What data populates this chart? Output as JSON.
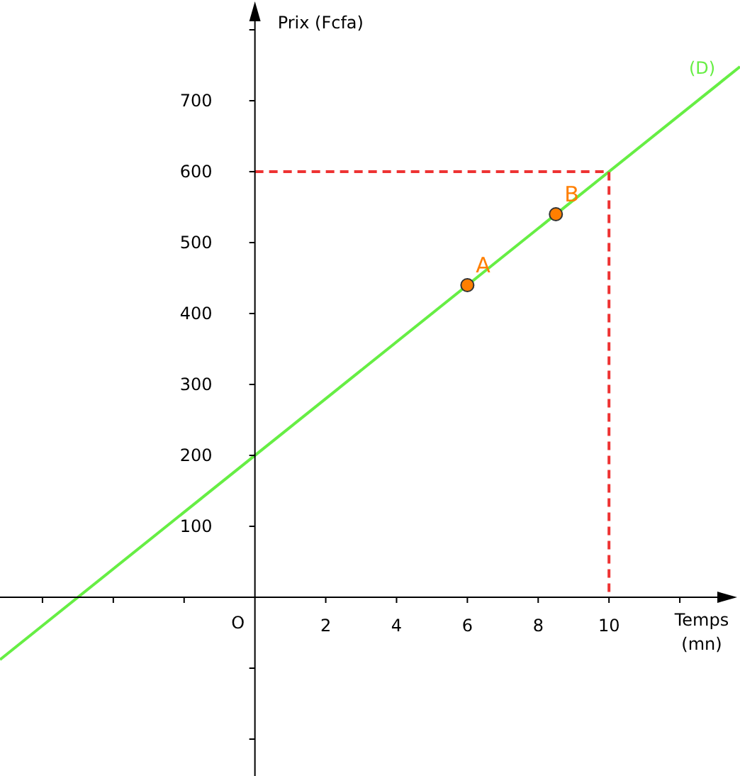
{
  "chart_data": {
    "type": "line",
    "xlabel": "Temps (mn)",
    "ylabel": "Prix (Fcfa)",
    "xlim": [
      -7.2,
      13.7
    ],
    "ylim": [
      -252,
      842
    ],
    "xticks": [
      {
        "value": -6,
        "label": null
      },
      {
        "value": -4,
        "label": null
      },
      {
        "value": -2,
        "label": null
      },
      2,
      4,
      6,
      8,
      10,
      {
        "value": 12,
        "label": null
      }
    ],
    "yticks": [
      {
        "value": -200,
        "label": null
      },
      {
        "value": -100,
        "label": null
      },
      100,
      200,
      300,
      400,
      500,
      600,
      700,
      {
        "value": 800,
        "label": null
      }
    ],
    "annotations": [
      "O"
    ],
    "series": [
      {
        "name": "(D)",
        "color": "#66ee44",
        "line_style": "solid",
        "x": [
          -7.2,
          13.7
        ],
        "values": [
          -88,
          748
        ]
      },
      {
        "color": "#ee3333",
        "line_style": "dashed",
        "x": [
          0,
          10,
          10
        ],
        "values": [
          600,
          600,
          0
        ]
      },
      {
        "name": "A",
        "type": "scatter",
        "color": "#ff7f00",
        "marker": "circle",
        "x": [
          6
        ],
        "values": [
          440
        ]
      },
      {
        "name": "B",
        "type": "scatter",
        "color": "#ff7f00",
        "marker": "circle",
        "x": [
          8.5
        ],
        "values": [
          540
        ]
      }
    ]
  }
}
